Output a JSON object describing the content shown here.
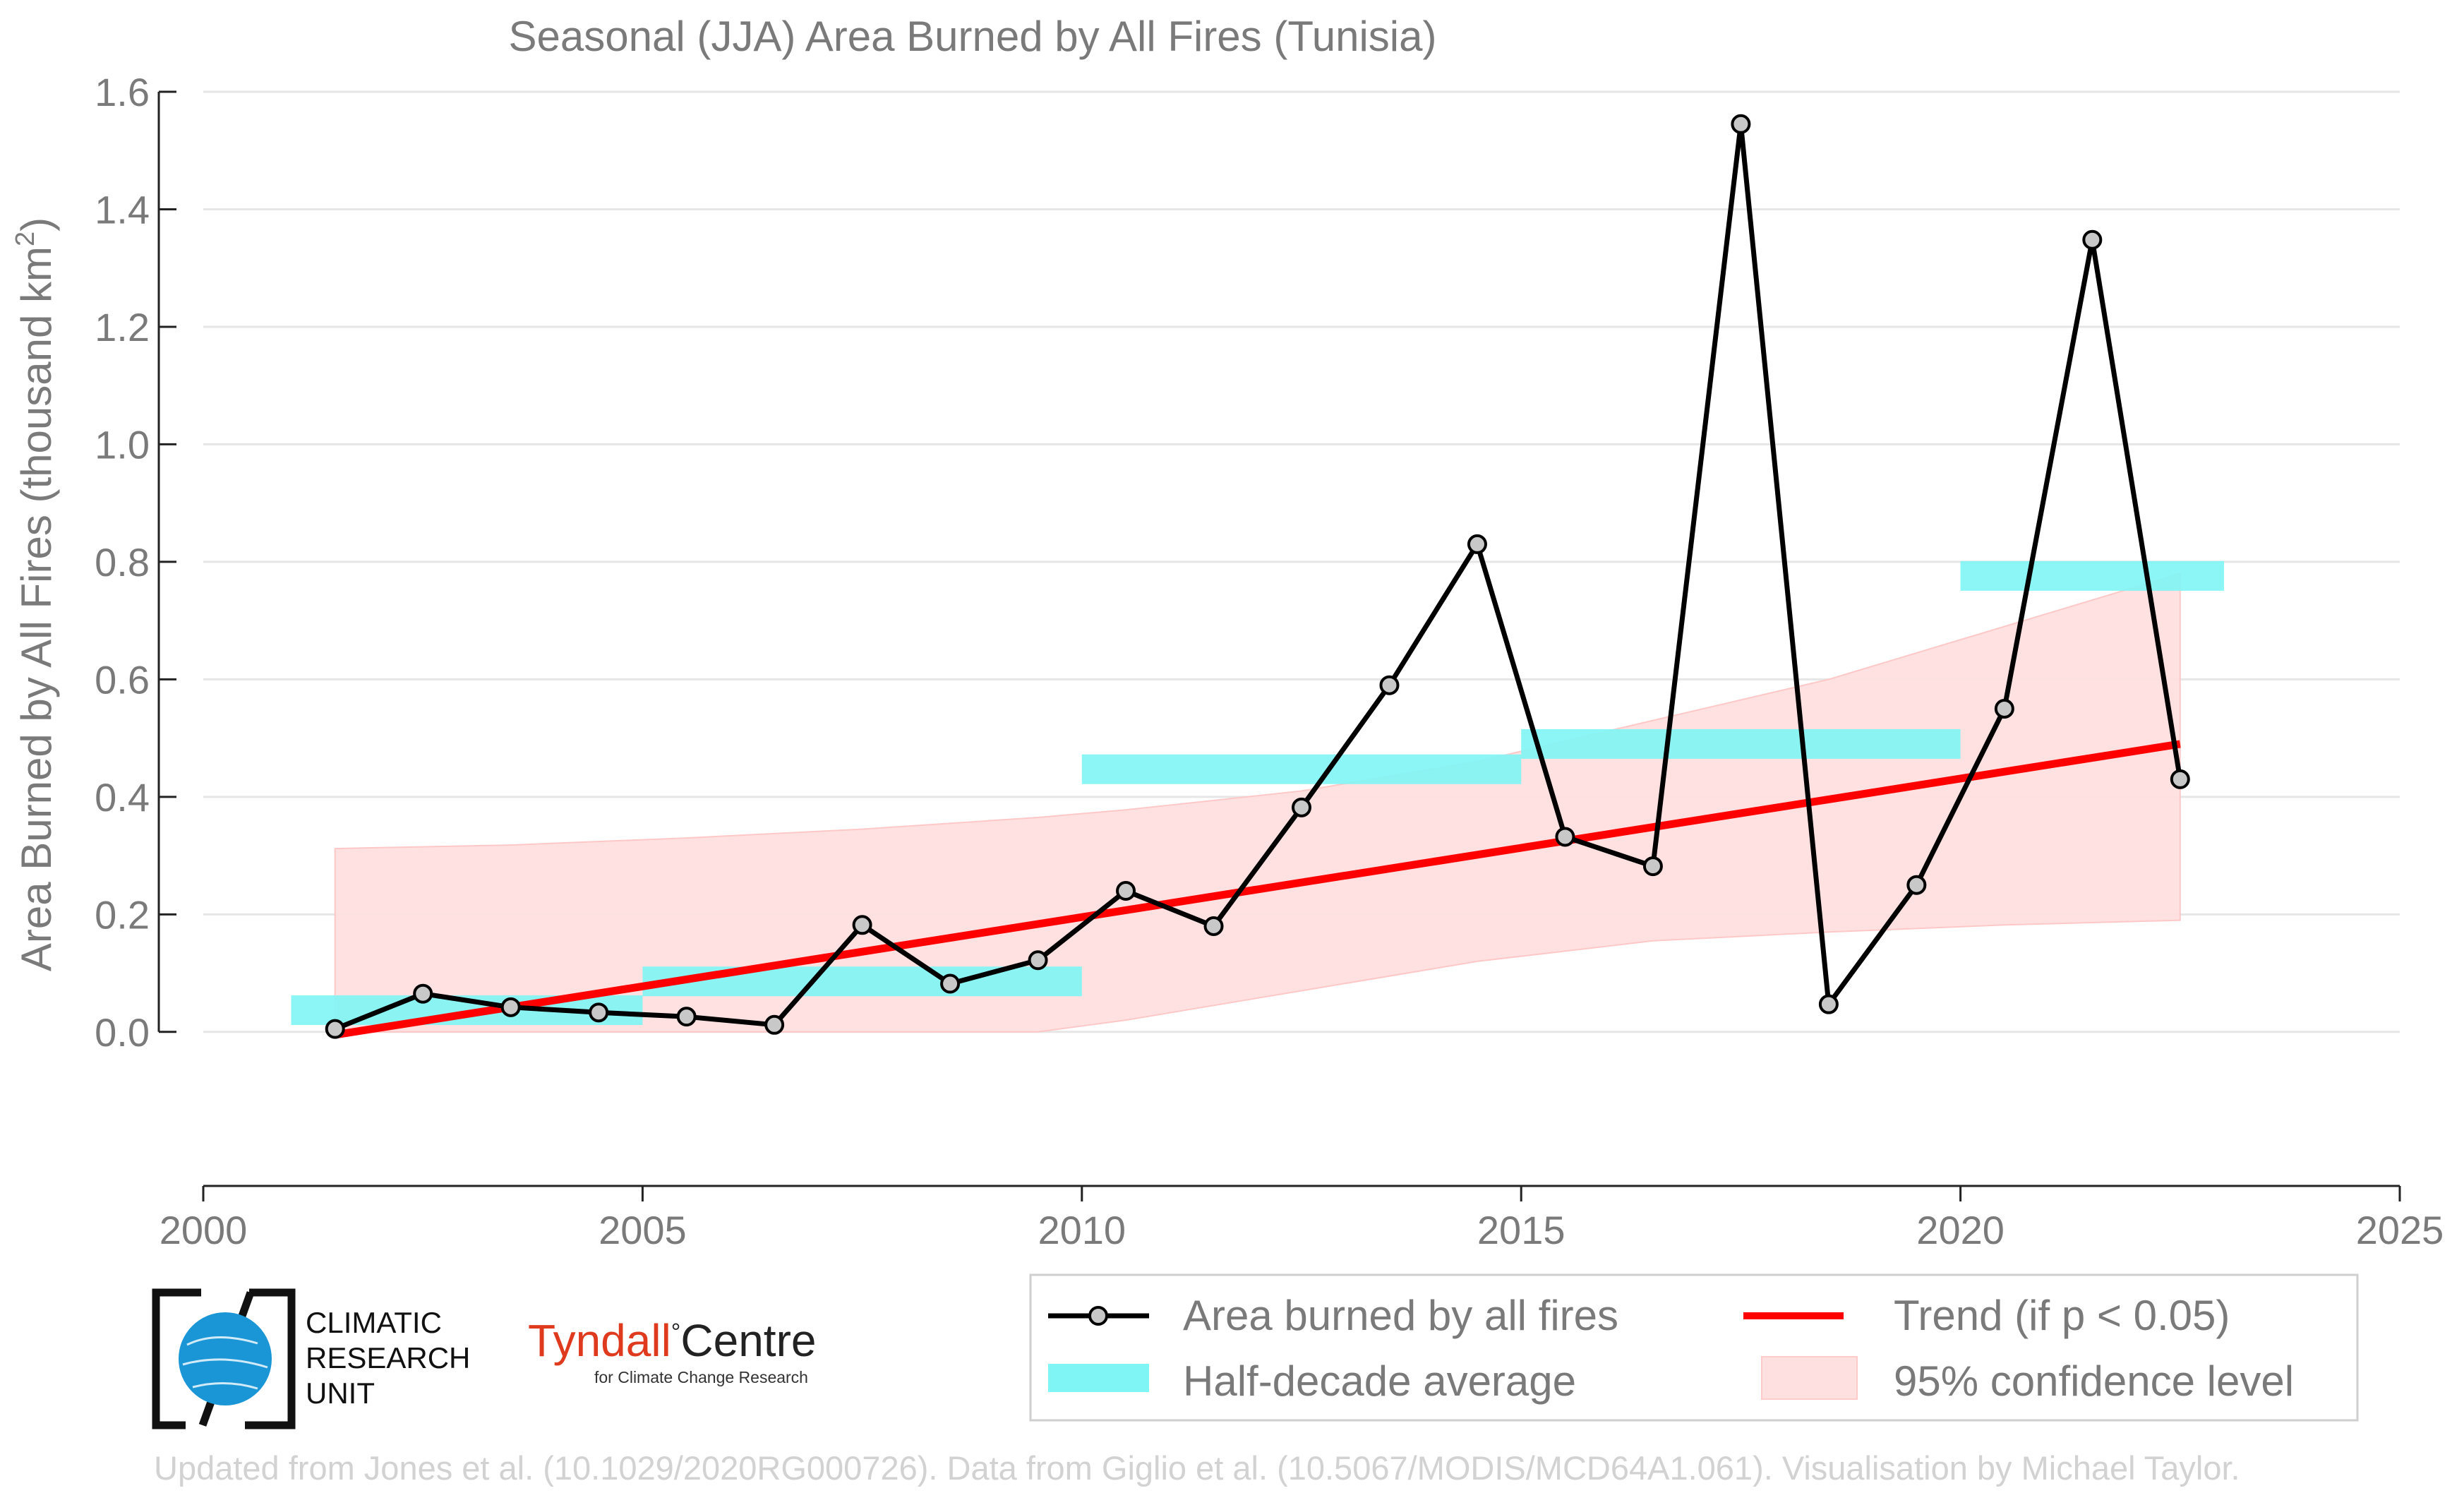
{
  "chart_data": {
    "type": "line",
    "title": "Seasonal (JJA) Area Burned by All Fires (Tunisia)",
    "xlabel": "",
    "ylabel": "Area Burned by All Fires (thousand km²)",
    "ylabel_main": "Area Burned by All Fires (thousand km",
    "ylabel_sup": "2",
    "ylabel_close": ")",
    "xlim": [
      2000,
      2025
    ],
    "ylim": [
      -0.13,
      1.6
    ],
    "xticks": [
      2000,
      2005,
      2010,
      2015,
      2020,
      2025
    ],
    "yticks": [
      0.0,
      0.2,
      0.4,
      0.6,
      0.8,
      1.0,
      1.2,
      1.4,
      1.6
    ],
    "ytick_labels": [
      "0.0",
      "0.2",
      "0.4",
      "0.6",
      "0.8",
      "1.0",
      "1.2",
      "1.4",
      "1.6"
    ],
    "grid": true,
    "series": [
      {
        "name": "Area burned by all fires",
        "color": "#000000",
        "marker_fill": "#c8c8c8",
        "x": [
          2001.5,
          2002.5,
          2003.5,
          2004.5,
          2005.5,
          2006.5,
          2007.5,
          2008.5,
          2009.5,
          2010.5,
          2011.5,
          2012.5,
          2013.5,
          2014.5,
          2015.5,
          2016.5,
          2017.5,
          2018.5,
          2019.5,
          2020.5,
          2021.5,
          2022.5
        ],
        "values": [
          0.005,
          0.065,
          0.042,
          0.033,
          0.026,
          0.012,
          0.182,
          0.082,
          0.122,
          0.24,
          0.18,
          0.382,
          0.59,
          0.83,
          0.332,
          0.282,
          1.545,
          0.047,
          0.25,
          0.55,
          1.348,
          0.43
        ]
      }
    ],
    "half_decade_average": {
      "name": "Half-decade average",
      "color": "#7ff5f5",
      "segments": [
        {
          "x0": 2001,
          "x1": 2005,
          "value": 0.037
        },
        {
          "x0": 2005,
          "x1": 2010,
          "value": 0.086
        },
        {
          "x0": 2010,
          "x1": 2015,
          "value": 0.447
        },
        {
          "x0": 2015,
          "x1": 2020,
          "value": 0.49
        },
        {
          "x0": 2020,
          "x1": 2023,
          "value": 0.776
        }
      ]
    },
    "trend": {
      "name": "Trend (if p < 0.05)",
      "color": "#ff0000",
      "x": [
        2001.5,
        2022.5
      ],
      "values": [
        -0.005,
        0.49
      ]
    },
    "confidence_band": {
      "name": "95% confidence level",
      "color": "#ffe0e0",
      "x": [
        2001.5,
        2003.5,
        2005.5,
        2007.5,
        2009.5,
        2010.5,
        2012.5,
        2014.5,
        2016.5,
        2018.5,
        2020.5,
        2022.5
      ],
      "upper": [
        0.312,
        0.318,
        0.33,
        0.345,
        0.365,
        0.378,
        0.41,
        0.46,
        0.53,
        0.6,
        0.69,
        0.78
      ],
      "lower": [
        0.0,
        0.0,
        0.0,
        0.0,
        0.0,
        0.02,
        0.07,
        0.12,
        0.155,
        0.17,
        0.182,
        0.19
      ]
    },
    "legend": {
      "position": "bottom-right",
      "entries": [
        "Area burned by all fires",
        "Trend (if p < 0.05)",
        "Half-decade average",
        "95% confidence level"
      ]
    }
  },
  "logos": {
    "cru": [
      "CLIMATIC",
      "RESEARCH",
      "UNIT"
    ],
    "tyndall_main": "Tyndall",
    "tyndall_deg": "°",
    "tyndall_centre": "Centre",
    "tyndall_sub": "for Climate Change Research"
  },
  "credit": "Updated from Jones et al. (10.1029/2020RG000726). Data from Giglio et al. (10.5067/MODIS/MCD64A1.061). Visualisation by Michael Taylor."
}
